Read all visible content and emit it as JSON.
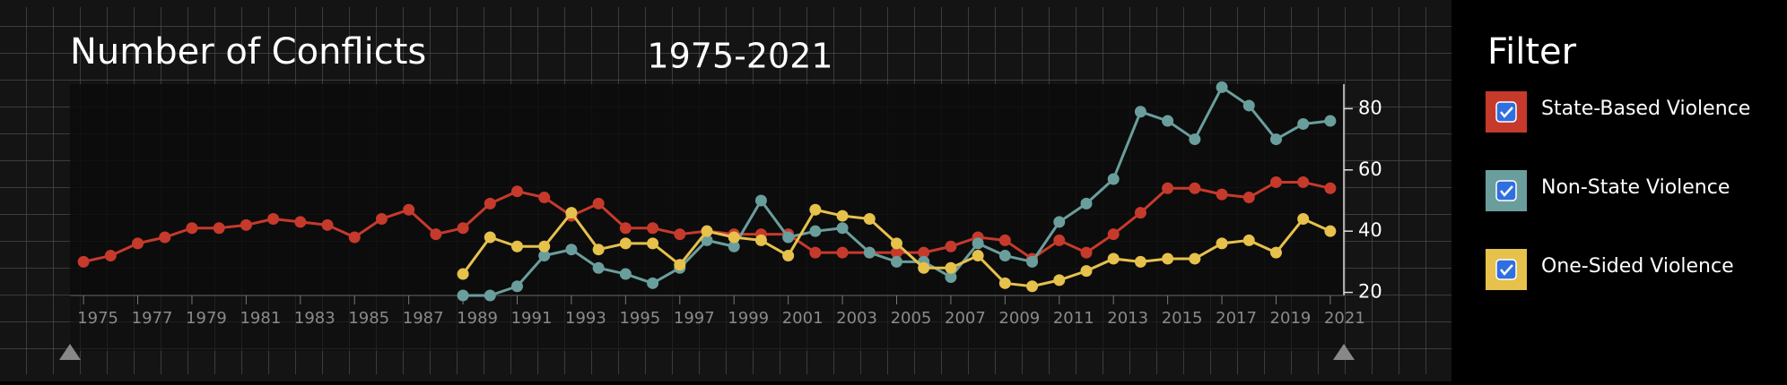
{
  "chart_data": {
    "type": "line",
    "title": "Number of Conflicts",
    "subtitle": "1975-2021",
    "legend_title": "Filter",
    "x": [
      1975,
      1976,
      1977,
      1978,
      1979,
      1980,
      1981,
      1982,
      1983,
      1984,
      1985,
      1986,
      1987,
      1988,
      1989,
      1990,
      1991,
      1992,
      1993,
      1994,
      1995,
      1996,
      1997,
      1998,
      1999,
      2000,
      2001,
      2002,
      2003,
      2004,
      2005,
      2006,
      2007,
      2008,
      2009,
      2010,
      2011,
      2012,
      2013,
      2014,
      2015,
      2016,
      2017,
      2018,
      2019,
      2020,
      2021
    ],
    "series": [
      {
        "name": "State-Based Violence",
        "color": "#c63a2c",
        "values": [
          30,
          32,
          36,
          38,
          41,
          41,
          42,
          44,
          43,
          42,
          38,
          44,
          47,
          39,
          41,
          49,
          53,
          51,
          45,
          49,
          41,
          41,
          39,
          40,
          39,
          39,
          39,
          33,
          33,
          33,
          33,
          33,
          35,
          38,
          37,
          31,
          37,
          33,
          39,
          46,
          54,
          54,
          52,
          51,
          56,
          56,
          54
        ]
      },
      {
        "name": "Non-State Violence",
        "color": "#6a9e9c",
        "values": [
          null,
          null,
          null,
          null,
          null,
          null,
          null,
          null,
          null,
          null,
          null,
          null,
          null,
          null,
          19,
          19,
          22,
          32,
          34,
          28,
          26,
          23,
          28,
          37,
          35,
          50,
          38,
          40,
          41,
          33,
          30,
          30,
          25,
          36,
          32,
          30,
          43,
          49,
          57,
          79,
          76,
          70,
          87,
          81,
          70,
          75,
          76
        ]
      },
      {
        "name": "One-Sided Violence",
        "color": "#e6c14c",
        "values": [
          null,
          null,
          null,
          null,
          null,
          null,
          null,
          null,
          null,
          null,
          null,
          null,
          null,
          null,
          26,
          38,
          35,
          35,
          46,
          34,
          36,
          36,
          29,
          40,
          38,
          37,
          32,
          47,
          45,
          44,
          36,
          28,
          28,
          32,
          23,
          22,
          24,
          27,
          31,
          30,
          31,
          31,
          36,
          37,
          33,
          44,
          40
        ]
      }
    ],
    "xlim": [
      1974.5,
      2021.5
    ],
    "ylim": [
      19,
      88
    ],
    "xticks": [
      1975,
      1977,
      1979,
      1981,
      1983,
      1985,
      1987,
      1989,
      1991,
      1993,
      1995,
      1997,
      1999,
      2001,
      2003,
      2005,
      2007,
      2009,
      2011,
      2013,
      2015,
      2017,
      2019,
      2021
    ],
    "yticks": [
      20,
      40,
      60,
      80
    ]
  }
}
